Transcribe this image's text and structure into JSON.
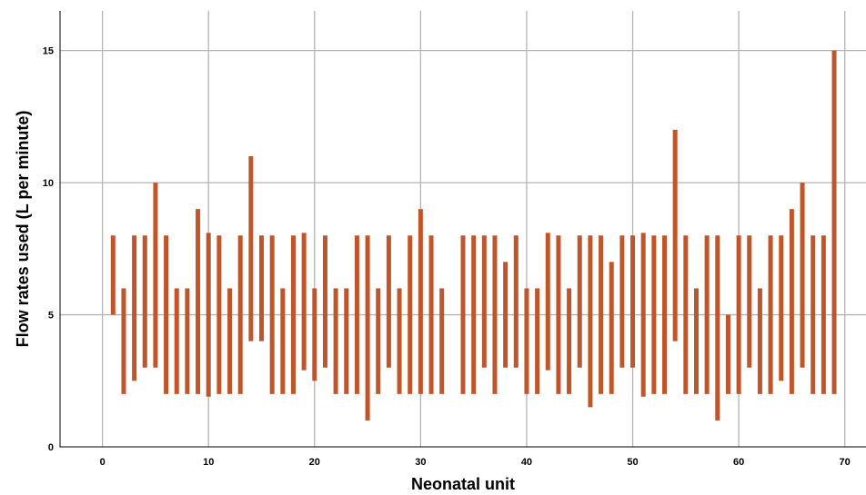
{
  "chart_data": {
    "type": "bar",
    "subtype": "floating-range",
    "xlabel": "Neonatal unit",
    "ylabel": "Flow rates used (L per minute)",
    "xlim": [
      -4,
      72
    ],
    "ylim": [
      0,
      16.5
    ],
    "xticks": [
      0,
      10,
      20,
      30,
      40,
      50,
      60,
      70
    ],
    "yticks": [
      0,
      5,
      10,
      15
    ],
    "grid": true,
    "bar_color": "#C1552A",
    "series": [
      {
        "x": [
          1,
          2,
          3,
          4,
          5,
          6,
          7,
          8,
          9,
          10,
          11,
          12,
          13,
          14,
          15,
          16,
          17,
          18,
          19,
          20,
          21,
          22,
          23,
          24,
          25,
          26,
          27,
          28,
          29,
          30,
          31,
          32,
          34,
          35,
          36,
          37,
          38,
          39,
          40,
          41,
          42,
          43,
          44,
          45,
          46,
          47,
          48,
          49,
          50,
          51,
          52,
          53,
          54,
          55,
          56,
          57,
          58,
          59,
          60,
          61,
          62,
          63,
          64,
          65,
          66,
          67,
          68,
          69
        ],
        "low": [
          5,
          2,
          2.5,
          3,
          3,
          2,
          2,
          2,
          2,
          1.9,
          2,
          2,
          2,
          4,
          4,
          2,
          2,
          2,
          2.9,
          2.5,
          3,
          2,
          2,
          2,
          1,
          2,
          3,
          2,
          2,
          2,
          2,
          2,
          2,
          2,
          3,
          2,
          3,
          3,
          2,
          2,
          2.9,
          2,
          2,
          3,
          1.5,
          2,
          2,
          3,
          3,
          1.9,
          2,
          2,
          4,
          2,
          2,
          2,
          1,
          2,
          2,
          3,
          2,
          2,
          2.5,
          2,
          3,
          2,
          2,
          2
        ],
        "high": [
          8,
          6,
          8,
          8,
          10,
          8,
          6,
          6,
          9,
          8.1,
          8,
          6,
          8,
          11,
          8,
          8,
          6,
          8,
          8.1,
          6,
          8,
          6,
          6,
          8,
          8,
          6,
          8,
          6,
          8,
          9,
          8,
          6,
          8,
          8,
          8,
          8,
          7,
          8,
          6,
          6,
          8.1,
          8,
          6,
          8,
          8,
          8,
          7,
          8,
          8,
          8.1,
          8,
          8,
          12,
          8,
          6,
          8,
          8,
          5,
          8,
          8,
          6,
          8,
          8,
          9,
          10,
          8,
          8,
          15
        ]
      }
    ]
  }
}
